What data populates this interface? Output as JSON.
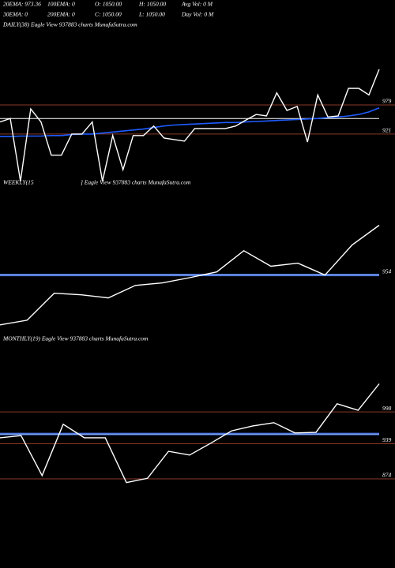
{
  "header": [
    [
      "20EMA: 973.36",
      "100EMA: 0",
      "O: 1050.00",
      "H: 1050.00",
      "Avg Vol: 0  M"
    ],
    [
      "30EMA: 0",
      "200EMA: 0",
      "C: 1050.00",
      "L: 1050.00",
      "Day Vol: 0  M"
    ]
  ],
  "chart_data": [
    {
      "type": "line",
      "title": "DAILY(38) Eagle  View  937883 charts MunafaSutra.com",
      "series": [
        {
          "color": "#ffffff",
          "values": [
            945,
            952,
            827,
            971,
            945,
            879,
            879,
            921,
            921,
            945,
            827,
            918,
            850,
            918,
            918,
            937,
            913,
            910,
            907,
            932,
            932,
            932,
            932,
            937,
            949,
            960,
            957,
            1003,
            968,
            976,
            905,
            999,
            955,
            957,
            1012,
            1012,
            999,
            1050
          ]
        },
        {
          "color": "#1f5cff",
          "values": [
            916,
            916,
            917,
            917,
            917,
            918,
            918,
            920,
            921,
            921,
            923,
            925,
            927,
            929,
            931,
            934,
            937,
            939,
            940,
            941,
            942,
            943,
            944,
            944,
            945,
            946,
            947,
            948,
            949,
            950,
            951,
            952,
            954,
            955,
            957,
            960,
            965,
            973
          ]
        }
      ],
      "hlines": [
        {
          "value": 952,
          "color": "#ffffff"
        }
      ],
      "ylim": [
        811,
        1125
      ],
      "yticks": [
        979,
        921
      ],
      "tick_line_color": "#8b3a2a"
    },
    {
      "type": "line",
      "title": [
        "WEEKLY(15",
        "] Eagle  View  937883 charts MunafaSutra.com"
      ],
      "series": [
        {
          "color": "#ffffff",
          "values": [
            858,
            867,
            919,
            916,
            910,
            934,
            939,
            949,
            960,
            1001,
            971,
            977,
            954,
            1012,
            1050
          ]
        }
      ],
      "hlines": [
        {
          "value": 954,
          "color": "#3f6fe0"
        }
      ],
      "ylim": [
        838,
        1104
      ],
      "yticks": [
        954
      ]
    },
    {
      "type": "line",
      "title": "MONTHLY(19) Eagle  View  937883 charts MunafaSutra.com",
      "series": [
        {
          "color": "#ffffff",
          "values": [
            950,
            954,
            880,
            975,
            950,
            950,
            867,
            875,
            925,
            918,
            940,
            963,
            972,
            978,
            959,
            960,
            1013,
            1001,
            1050
          ]
        }
      ],
      "hlines": [
        {
          "value": 957,
          "color": "#3f6fe0"
        }
      ],
      "ylim": [
        738,
        1118
      ],
      "yticks": [
        998,
        939,
        874
      ],
      "tick_line_color": "#8b3a2a"
    }
  ]
}
